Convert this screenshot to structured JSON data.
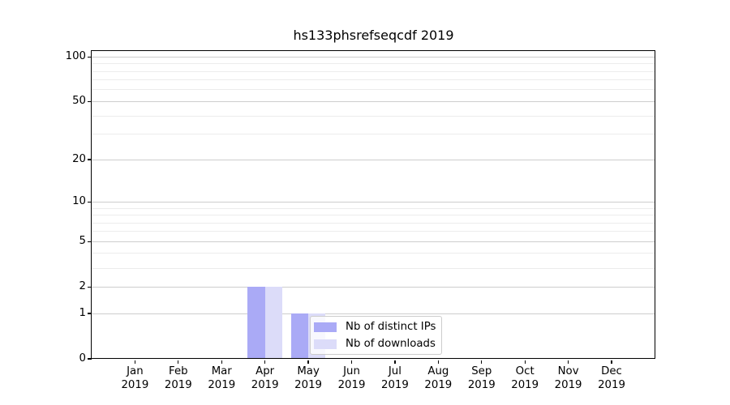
{
  "chart_data": {
    "type": "bar",
    "title": "hs133phsrefseqcdf 2019",
    "x": [
      "Jan",
      "Feb",
      "Mar",
      "Apr",
      "May",
      "Jun",
      "Jul",
      "Aug",
      "Sep",
      "Oct",
      "Nov",
      "Dec"
    ],
    "x_year": "2019",
    "series": [
      {
        "name": "Nb of distinct IPs",
        "color": "#aaaaf6",
        "values": [
          0,
          0,
          0,
          2,
          1,
          0,
          0,
          0,
          0,
          0,
          0,
          0
        ]
      },
      {
        "name": "Nb of downloads",
        "color": "#dcdcf9",
        "values": [
          0,
          0,
          0,
          2,
          1,
          0,
          0,
          0,
          0,
          0,
          0,
          0
        ]
      }
    ],
    "yscale": "log1p",
    "ylim": [
      0,
      110
    ],
    "y_major_ticks": [
      0,
      1,
      2,
      5,
      10,
      20,
      50,
      100
    ],
    "y_tick_labels": [
      "0",
      "1",
      "2",
      "5",
      "10",
      "20",
      "50",
      "100"
    ],
    "y_minor_gridlines": [
      3,
      4,
      6,
      7,
      8,
      9,
      30,
      40,
      60,
      70,
      80,
      90
    ],
    "grid": "horizontal-only",
    "legend_position": "inside-bottom-center"
  },
  "legend": {
    "items": [
      {
        "label": "Nb of distinct IPs",
        "color": "#aaaaf6"
      },
      {
        "label": "Nb of downloads",
        "color": "#dcdcf9"
      }
    ]
  },
  "colors": {
    "bar_distinct_ips": "#aaaaf6",
    "bar_downloads": "#dcdcf9",
    "grid_major": "#cdcdcd",
    "grid_minor": "#ececec",
    "axis": "#000000",
    "legend_border": "#cccccc",
    "background": "#ffffff"
  }
}
